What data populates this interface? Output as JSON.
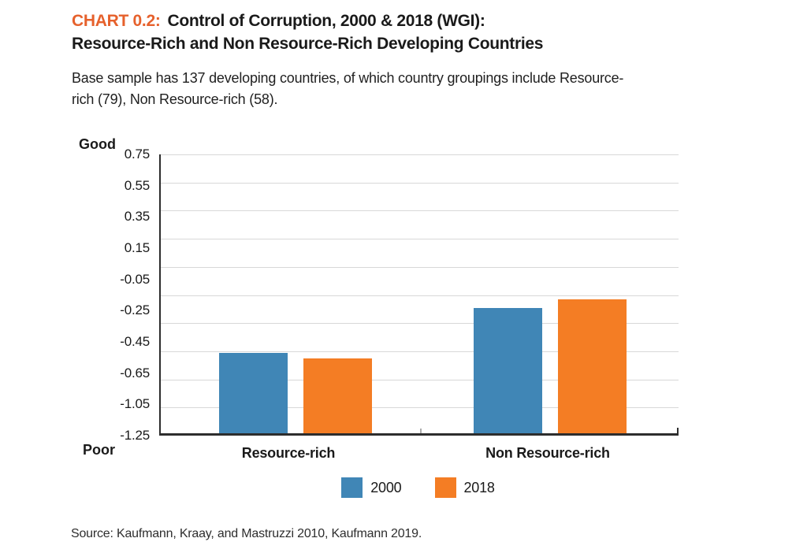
{
  "header": {
    "chart_label": "CHART 0.2:",
    "title_rest": "Control of Corruption, 2000 & 2018 (WGI):",
    "title_line2": "Resource-Rich and Non Resource-Rich Developing Countries",
    "subtitle": "Base sample has 137 developing countries, of which country groupings include Resource-rich (79), Non Resource-rich (58)."
  },
  "chart_data": {
    "type": "bar",
    "title": "Control of Corruption, 2000 & 2018 (WGI): Resource-Rich and Non Resource-Rich Developing Countries",
    "categories": [
      "Resource-rich",
      "Non Resource-rich"
    ],
    "series": [
      {
        "name": "2000",
        "color": "#4086B6",
        "values": [
          -0.66,
          -0.34
        ]
      },
      {
        "name": "2018",
        "color": "#F47D24",
        "values": [
          -0.7,
          -0.28
        ]
      }
    ],
    "y_axis": {
      "top_label": "Good",
      "bottom_label": "Poor",
      "tick_labels": [
        "0.75",
        "0.55",
        "0.35",
        "0.15",
        "-0.05",
        "-0.25",
        "-0.45",
        "-0.65",
        "-1.05",
        "-1.25"
      ],
      "ylim": [
        -1.25,
        0.75
      ],
      "gridlines": true
    },
    "legend_position": "bottom"
  },
  "footer": {
    "source": "Source: Kaufmann, Kraay, and Mastruzzi 2010, Kaufmann 2019."
  },
  "colors": {
    "accent_title": "#E6612C",
    "bar_2000": "#4086B6",
    "bar_2018": "#F47D24",
    "axis": "#2d2d2d",
    "gridline": "#d8d8d8"
  }
}
